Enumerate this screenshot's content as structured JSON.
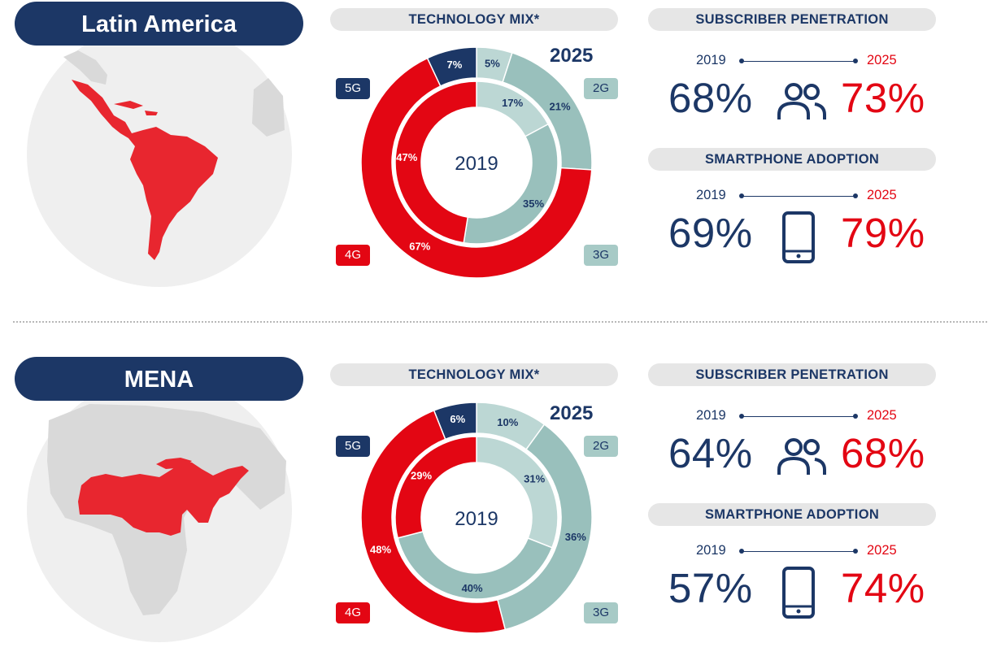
{
  "regions": [
    {
      "name": "Latin America",
      "technology_mix_label": "TECHNOLOGY MIX*",
      "subscriber_penetration_label": "SUBSCRIBER PENETRATION",
      "smartphone_adoption_label": "SMARTPHONE ADOPTION",
      "subscriber_penetration": {
        "year_from": "2019",
        "year_to": "2025",
        "value_from": "68%",
        "value_to": "73%"
      },
      "smartphone_adoption": {
        "year_from": "2019",
        "year_to": "2025",
        "value_from": "69%",
        "value_to": "79%"
      }
    },
    {
      "name": "MENA",
      "technology_mix_label": "TECHNOLOGY MIX*",
      "subscriber_penetration_label": "SUBSCRIBER PENETRATION",
      "smartphone_adoption_label": "SMARTPHONE ADOPTION",
      "subscriber_penetration": {
        "year_from": "2019",
        "year_to": "2025",
        "value_from": "64%",
        "value_to": "68%"
      },
      "smartphone_adoption": {
        "year_from": "2019",
        "year_to": "2025",
        "value_from": "57%",
        "value_to": "74%"
      }
    }
  ],
  "legend": {
    "g5": "5G",
    "g4": "4G",
    "g3": "3G",
    "g2": "2G"
  },
  "colors": {
    "g5": "#1c3766",
    "g4": "#e30613",
    "g3": "#99c0bc",
    "g2": "#bcd7d4",
    "navy": "#1c3766",
    "red": "#e30613",
    "map_land": "#d9d9d9",
    "map_sea": "#efefef"
  },
  "icons": [
    "people-icon",
    "smartphone-icon"
  ],
  "chart_data": [
    {
      "type": "pie",
      "region": "Latin America",
      "center_label": "2019",
      "outer_label": "2025",
      "inner_ring": {
        "year": "2019",
        "slices": [
          {
            "label": "2G",
            "value": 17
          },
          {
            "label": "3G",
            "value": 35
          },
          {
            "label": "4G",
            "value": 47
          },
          {
            "label": "5G",
            "value": 0
          }
        ]
      },
      "outer_ring": {
        "year": "2025",
        "slices": [
          {
            "label": "2G",
            "value": 5
          },
          {
            "label": "3G",
            "value": 21
          },
          {
            "label": "4G",
            "value": 67
          },
          {
            "label": "5G",
            "value": 7
          }
        ]
      }
    },
    {
      "type": "pie",
      "region": "MENA",
      "center_label": "2019",
      "outer_label": "2025",
      "inner_ring": {
        "year": "2019",
        "slices": [
          {
            "label": "2G",
            "value": 31
          },
          {
            "label": "3G",
            "value": 40
          },
          {
            "label": "4G",
            "value": 29
          },
          {
            "label": "5G",
            "value": 0
          }
        ]
      },
      "outer_ring": {
        "year": "2025",
        "slices": [
          {
            "label": "2G",
            "value": 10
          },
          {
            "label": "3G",
            "value": 36
          },
          {
            "label": "4G",
            "value": 48
          },
          {
            "label": "5G",
            "value": 6
          }
        ]
      }
    }
  ]
}
